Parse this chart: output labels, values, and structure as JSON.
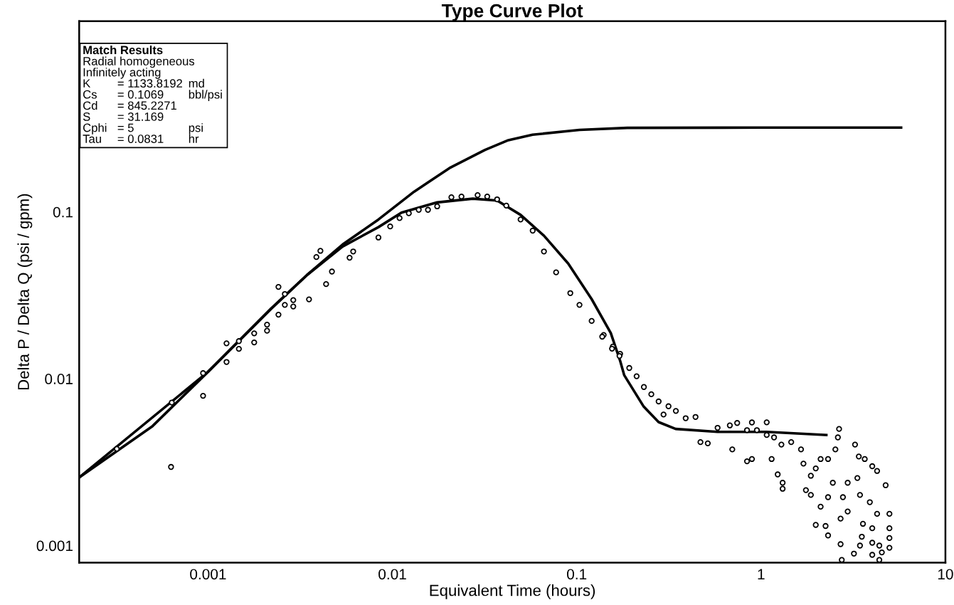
{
  "chart_data": {
    "type": "line",
    "title": "Type Curve Plot",
    "xlabel": "Equivalent Time (hours)",
    "ylabel": "Delta P / Delta Q (psi / gpm)",
    "log": "xy",
    "grid": false,
    "xlim": [
      0.0002,
      10
    ],
    "ylim": [
      0.00079,
      1.39
    ],
    "xticks": [
      0.001,
      0.01,
      0.1,
      1,
      10
    ],
    "yticks": [
      0.001,
      0.01,
      0.1
    ],
    "annotations": [
      "Match Results",
      "Radial homogeneous",
      "Infinitely acting",
      "K = 1133.8192 md",
      "Cs = 0.1069 bbl/psi",
      "Cd = 845.2271",
      "S = 31.169",
      "Cphi = 5 psi",
      "Tau = 0.0831 hr"
    ],
    "series": [
      {
        "color": "#000000",
        "marker": "none",
        "line_style": "solid",
        "x": [
          0.0002,
          0.0005,
          0.001,
          0.0022,
          0.00344,
          0.00537,
          0.0084,
          0.0131,
          0.0204,
          0.0318,
          0.0426,
          0.0576,
          0.1035,
          0.188,
          1.0,
          5.75
        ],
        "values": [
          0.00256,
          0.0052,
          0.011,
          0.0263,
          0.0418,
          0.0637,
          0.09,
          0.132,
          0.183,
          0.235,
          0.269,
          0.29,
          0.31,
          0.319,
          0.32,
          0.32
        ]
      },
      {
        "color": "#000000",
        "marker": "none",
        "line_style": "solid",
        "x": [
          0.0002,
          0.001,
          0.0022,
          0.00344,
          0.00537,
          0.0084,
          0.0112,
          0.0175,
          0.0273,
          0.037,
          0.0496,
          0.0664,
          0.0899,
          0.1205,
          0.153,
          0.172,
          0.181,
          0.231,
          0.278,
          0.344,
          0.581,
          1.07,
          2.26
        ],
        "values": [
          0.00256,
          0.011,
          0.0263,
          0.0418,
          0.062,
          0.081,
          0.099,
          0.114,
          0.12,
          0.117,
          0.096,
          0.072,
          0.049,
          0.03,
          0.0188,
          0.0128,
          0.0105,
          0.0068,
          0.0055,
          0.005,
          0.0048,
          0.0048,
          0.0046
        ]
      },
      {
        "type": "scatter",
        "color": "#000000",
        "marker": "circle",
        "x": [
          0.00032,
          0.000636,
          0.00063,
          0.00094,
          0.00094,
          0.00126,
          0.00126,
          0.00147,
          0.00147,
          0.00178,
          0.00178,
          0.00209,
          0.00209,
          0.00241,
          0.00241,
          0.00261,
          0.00261,
          0.0029,
          0.0029,
          0.00387,
          0.00407,
          0.00437,
          0.0047,
          0.00586,
          0.00613,
          0.0084,
          0.00353,
          0.00973,
          0.01094,
          0.01228,
          0.0139,
          0.0156,
          0.0175,
          0.0209,
          0.0237,
          0.029,
          0.0327,
          0.037,
          0.0415,
          0.0496,
          0.0577,
          0.0664,
          0.0773,
          0.0923,
          0.1035,
          0.1205,
          0.14,
          0.157,
          0.172,
          0.1375,
          0.1554,
          0.1706,
          0.1928,
          0.2113,
          0.2314,
          0.2539,
          0.2782,
          0.3147,
          0.2958,
          0.345,
          0.39,
          0.441,
          0.469,
          0.514,
          0.581,
          0.677,
          0.742,
          0.892,
          1.073,
          0.839,
          0.949,
          1.073,
          1.176,
          1.289,
          1.457,
          0.698,
          0.839,
          0.892,
          1.141,
          1.231,
          1.309,
          1.309,
          1.647,
          1.698,
          1.862,
          1.98,
          2.104,
          2.309,
          2.53,
          2.65,
          2.61,
          3.234,
          3.39,
          1.98,
          2.238,
          2.309,
          2.104,
          2.7,
          2.7,
          2.74,
          3.19,
          2.95,
          3.33,
          3.65,
          4.01,
          4.26,
          4.74,
          3.44,
          3.89,
          4.26,
          4.97,
          3.57,
          4.01,
          4.97,
          3.52,
          3.44,
          4.01,
          4.38,
          4.97,
          4.97,
          4.01,
          4.38,
          4.52,
          2.95,
          2.78,
          2.309,
          2.45,
          1.751,
          1.862
        ],
        "values": [
          0.0038,
          0.0072,
          0.00296,
          0.0079,
          0.0108,
          0.0126,
          0.0163,
          0.0151,
          0.0168,
          0.0187,
          0.0165,
          0.0211,
          0.0194,
          0.0242,
          0.0355,
          0.0322,
          0.0277,
          0.0296,
          0.0271,
          0.0536,
          0.0584,
          0.0369,
          0.0439,
          0.0531,
          0.0579,
          0.0702,
          0.0299,
          0.0818,
          0.0918,
          0.0981,
          0.1029,
          0.1029,
          0.1079,
          0.1223,
          0.1235,
          0.126,
          0.1235,
          0.1189,
          0.109,
          0.09,
          0.0772,
          0.0579,
          0.0434,
          0.0326,
          0.0277,
          0.0222,
          0.0183,
          0.0156,
          0.0141,
          0.01787,
          0.01514,
          0.0137,
          0.0116,
          0.01035,
          0.00892,
          0.00807,
          0.00731,
          0.00684,
          0.0061,
          0.00641,
          0.0058,
          0.0059,
          0.00417,
          0.0041,
          0.00508,
          0.00525,
          0.00543,
          0.00547,
          0.00548,
          0.00492,
          0.00492,
          0.0046,
          0.00445,
          0.00403,
          0.00417,
          0.00377,
          0.0032,
          0.0033,
          0.0033,
          0.00267,
          0.00238,
          0.00219,
          0.00377,
          0.0031,
          0.00262,
          0.0029,
          0.0033,
          0.0033,
          0.00377,
          0.005,
          0.00445,
          0.00403,
          0.00342,
          0.00133,
          0.00131,
          0.00115,
          0.00171,
          0.00145,
          0.00102,
          0.00082,
          0.000895,
          0.00238,
          0.00254,
          0.0033,
          0.00299,
          0.0028,
          0.0023,
          0.00201,
          0.00182,
          0.00155,
          0.00155,
          0.00135,
          0.00127,
          0.00127,
          0.00113,
          0.001,
          0.00104,
          0.001,
          0.00111,
          0.00097,
          0.00088,
          0.00082,
          0.00091,
          0.0016,
          0.00195,
          0.00195,
          0.00238,
          0.00215,
          0.00201
        ]
      }
    ]
  }
}
